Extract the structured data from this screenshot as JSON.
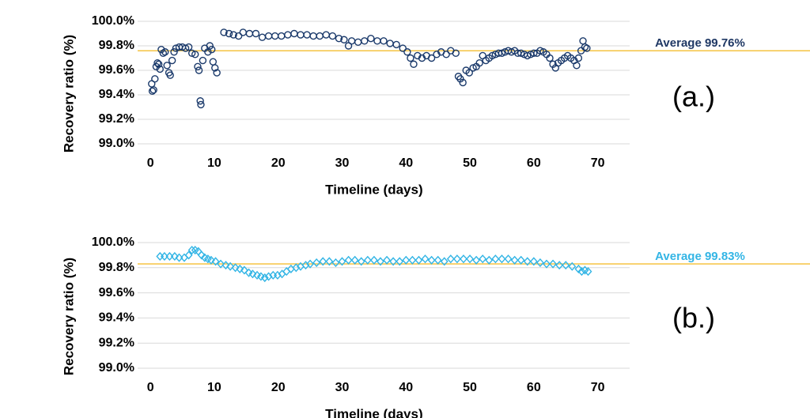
{
  "chart_data": [
    {
      "type": "scatter",
      "marker": "circle",
      "color": "#1b3a6b",
      "panel_label": "(a.)",
      "x_label": "Timeline (days)",
      "y_label": "Recovery ratio (%)",
      "xlim": [
        -2,
        75
      ],
      "xticks": [
        0,
        10,
        20,
        30,
        40,
        50,
        60,
        70
      ],
      "ylim": [
        99.0,
        100.0
      ],
      "yticks": [
        {
          "value": 99.0,
          "label": "99.0%"
        },
        {
          "value": 99.2,
          "label": "99.2%"
        },
        {
          "value": 99.4,
          "label": "99.4%"
        },
        {
          "value": 99.6,
          "label": "99.6%"
        },
        {
          "value": 99.8,
          "label": "99.8%"
        },
        {
          "value": 100.0,
          "label": "100.0%"
        }
      ],
      "grid": true,
      "average": {
        "value": 99.76,
        "label": "Average 99.76%",
        "color": "#f5c342",
        "label_color": "#1f3864"
      },
      "x": [
        0.2,
        0.3,
        0.5,
        0.7,
        0.9,
        1.1,
        1.3,
        1.5,
        1.7,
        2.0,
        2.3,
        2.6,
        2.9,
        3.1,
        3.4,
        3.7,
        4.0,
        4.5,
        5.0,
        5.5,
        6.0,
        6.5,
        7.0,
        7.4,
        7.6,
        7.8,
        7.9,
        8.2,
        8.5,
        9.0,
        9.3,
        9.6,
        9.8,
        10.1,
        10.4,
        11.5,
        12.3,
        13.0,
        13.8,
        14.5,
        15.5,
        16.5,
        17.5,
        18.5,
        19.5,
        20.5,
        21.5,
        22.5,
        23.5,
        24.5,
        25.5,
        26.5,
        27.5,
        28.5,
        29.5,
        30.3,
        31.0,
        31.5,
        32.5,
        33.5,
        34.5,
        35.5,
        36.5,
        37.5,
        38.5,
        39.5,
        40.2,
        40.7,
        41.2,
        41.8,
        42.5,
        43.2,
        44.0,
        44.8,
        45.5,
        46.3,
        47.0,
        47.8,
        48.2,
        48.5,
        48.9,
        49.4,
        49.9,
        50.5,
        51.0,
        51.5,
        52.0,
        52.5,
        53.0,
        53.5,
        54.0,
        54.5,
        55.0,
        55.5,
        56.0,
        56.5,
        57.0,
        57.5,
        58.0,
        58.5,
        59.0,
        59.5,
        60.0,
        60.5,
        61.0,
        61.5,
        62.0,
        62.5,
        63.0,
        63.4,
        63.8,
        64.3,
        64.8,
        65.3,
        65.8,
        66.3,
        66.7,
        67.0,
        67.4,
        67.7,
        68.0,
        68.3
      ],
      "values": [
        99.49,
        99.43,
        99.44,
        99.53,
        99.63,
        99.66,
        99.65,
        99.61,
        99.77,
        99.74,
        99.75,
        99.64,
        99.58,
        99.56,
        99.68,
        99.75,
        99.78,
        99.79,
        99.79,
        99.78,
        99.79,
        99.74,
        99.73,
        99.63,
        99.6,
        99.35,
        99.32,
        99.68,
        99.78,
        99.75,
        99.8,
        99.77,
        99.67,
        99.62,
        99.58,
        99.91,
        99.9,
        99.89,
        99.88,
        99.91,
        99.9,
        99.9,
        99.87,
        99.88,
        99.88,
        99.88,
        99.89,
        99.9,
        99.89,
        99.89,
        99.88,
        99.88,
        99.89,
        99.88,
        99.86,
        99.85,
        99.8,
        99.84,
        99.83,
        99.84,
        99.86,
        99.84,
        99.84,
        99.82,
        99.81,
        99.78,
        99.75,
        99.7,
        99.65,
        99.72,
        99.7,
        99.72,
        99.7,
        99.73,
        99.75,
        99.73,
        99.76,
        99.74,
        99.55,
        99.53,
        99.5,
        99.6,
        99.58,
        99.62,
        99.63,
        99.66,
        99.72,
        99.68,
        99.7,
        99.72,
        99.73,
        99.74,
        99.74,
        99.75,
        99.76,
        99.75,
        99.76,
        99.74,
        99.74,
        99.73,
        99.72,
        99.73,
        99.74,
        99.74,
        99.76,
        99.75,
        99.73,
        99.7,
        99.65,
        99.62,
        99.66,
        99.68,
        99.7,
        99.72,
        99.7,
        99.68,
        99.64,
        99.7,
        99.76,
        99.84,
        99.79,
        99.78
      ]
    },
    {
      "type": "scatter",
      "marker": "diamond",
      "color": "#33b5e5",
      "panel_label": "(b.)",
      "x_label": "Timeline (days)",
      "y_label": "Recovery ratio (%)",
      "xlim": [
        -2,
        75
      ],
      "xticks": [
        0,
        10,
        20,
        30,
        40,
        50,
        60,
        70
      ],
      "ylim": [
        99.0,
        100.0
      ],
      "yticks": [
        {
          "value": 99.0,
          "label": "99.0%"
        },
        {
          "value": 99.2,
          "label": "99.2%"
        },
        {
          "value": 99.4,
          "label": "99.4%"
        },
        {
          "value": 99.6,
          "label": "99.6%"
        },
        {
          "value": 99.8,
          "label": "99.8%"
        },
        {
          "value": 100.0,
          "label": "100.0%"
        }
      ],
      "grid": true,
      "average": {
        "value": 99.83,
        "label": "Average 99.83%",
        "color": "#f5c342",
        "label_color": "#33b5e5"
      },
      "x": [
        1.5,
        2.2,
        3.0,
        3.8,
        4.5,
        5.3,
        6.0,
        6.5,
        7.0,
        7.5,
        8.0,
        8.5,
        9.0,
        9.5,
        10.2,
        11.0,
        11.8,
        12.5,
        13.3,
        14.0,
        14.7,
        15.4,
        16.0,
        16.7,
        17.3,
        17.9,
        18.5,
        19.2,
        19.9,
        20.6,
        21.3,
        22.0,
        22.8,
        23.5,
        24.3,
        25.0,
        26.0,
        27.0,
        28.0,
        29.0,
        30.0,
        31.0,
        32.0,
        33.0,
        34.0,
        35.0,
        36.0,
        37.0,
        38.0,
        39.0,
        40.0,
        41.0,
        42.0,
        43.0,
        44.0,
        45.0,
        46.0,
        47.0,
        48.0,
        49.0,
        50.0,
        51.0,
        52.0,
        53.0,
        54.0,
        55.0,
        56.0,
        57.0,
        58.0,
        59.0,
        60.0,
        61.0,
        62.0,
        63.0,
        64.0,
        65.0,
        66.0,
        67.0,
        67.5,
        68.0,
        68.5
      ],
      "values": [
        99.89,
        99.89,
        99.89,
        99.89,
        99.88,
        99.88,
        99.9,
        99.94,
        99.94,
        99.93,
        99.9,
        99.88,
        99.87,
        99.86,
        99.85,
        99.83,
        99.82,
        99.81,
        99.8,
        99.79,
        99.78,
        99.76,
        99.75,
        99.74,
        99.73,
        99.72,
        99.73,
        99.74,
        99.74,
        99.75,
        99.77,
        99.79,
        99.8,
        99.81,
        99.82,
        99.83,
        99.84,
        99.85,
        99.85,
        99.84,
        99.85,
        99.86,
        99.86,
        99.85,
        99.86,
        99.86,
        99.85,
        99.86,
        99.85,
        99.85,
        99.86,
        99.86,
        99.86,
        99.87,
        99.86,
        99.86,
        99.85,
        99.87,
        99.87,
        99.87,
        99.87,
        99.86,
        99.87,
        99.86,
        99.87,
        99.87,
        99.87,
        99.86,
        99.86,
        99.85,
        99.85,
        99.84,
        99.83,
        99.83,
        99.82,
        99.82,
        99.81,
        99.79,
        99.77,
        99.78,
        99.77
      ]
    }
  ]
}
